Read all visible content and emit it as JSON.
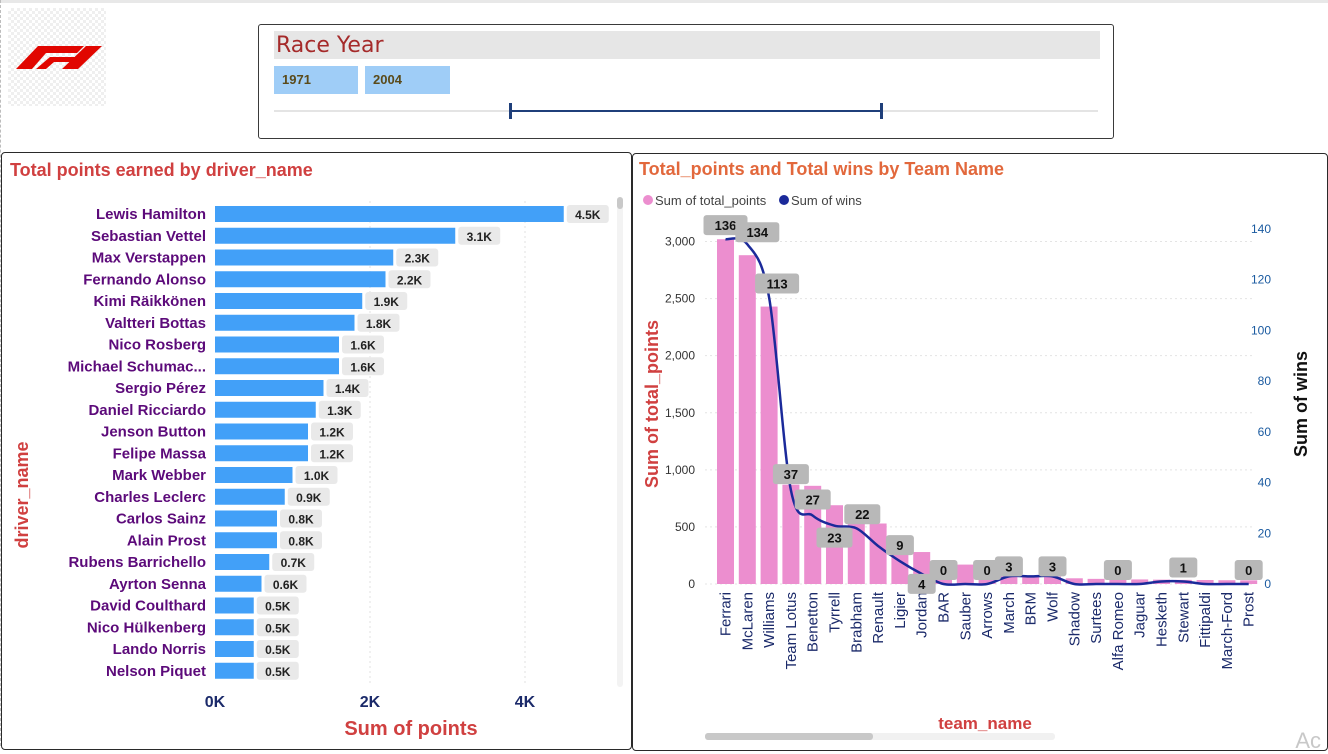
{
  "brand": {
    "logo": "f1-logo"
  },
  "slicer": {
    "title": "Race Year",
    "start": "1971",
    "end": "2004"
  },
  "left_panel": {
    "title": "Total points earned by driver_name"
  },
  "right_panel": {
    "title": "Total_points and Total wins by Team Name"
  },
  "colors": {
    "bar": "#42a0f8",
    "team_bar": "#ec8ecf",
    "wins_line": "#1b2a9a",
    "title_red": "#d04040",
    "driver_purple": "#5c0a7a"
  },
  "chart_data": [
    {
      "type": "bar",
      "orientation": "horizontal",
      "title": "Total points earned by driver_name",
      "xlabel": "Sum of points",
      "ylabel": "driver_name",
      "categories": [
        "Lewis Hamilton",
        "Sebastian Vettel",
        "Max Verstappen",
        "Fernando Alonso",
        "Kimi Räikkönen",
        "Valtteri Bottas",
        "Nico Rosberg",
        "Michael Schumac...",
        "Sergio Pérez",
        "Daniel Ricciardo",
        "Jenson Button",
        "Felipe Massa",
        "Mark Webber",
        "Charles Leclerc",
        "Carlos Sainz",
        "Alain Prost",
        "Rubens Barrichello",
        "Ayrton Senna",
        "David Coulthard",
        "Nico Hülkenberg",
        "Lando Norris",
        "Nelson Piquet"
      ],
      "values": [
        4500,
        3100,
        2300,
        2200,
        1900,
        1800,
        1600,
        1600,
        1400,
        1300,
        1200,
        1200,
        1000,
        900,
        800,
        800,
        700,
        600,
        500,
        500,
        500,
        500
      ],
      "data_labels": [
        "4.5K",
        "3.1K",
        "2.3K",
        "2.2K",
        "1.9K",
        "1.8K",
        "1.6K",
        "1.6K",
        "1.4K",
        "1.3K",
        "1.2K",
        "1.2K",
        "1.0K",
        "0.9K",
        "0.8K",
        "0.8K",
        "0.7K",
        "0.6K",
        "0.5K",
        "0.5K",
        "0.5K",
        "0.5K"
      ],
      "xlim": [
        0,
        5000
      ],
      "x_ticks": [
        "0K",
        "2K",
        "4K"
      ],
      "grid": true
    },
    {
      "type": "bar",
      "combo": "bar+line",
      "title": "Total_points and Total wins by Team Name",
      "xlabel": "team_name",
      "ylabel": "Sum of total_points",
      "y2label": "Sum of wins",
      "legend": [
        "Sum of total_points",
        "Sum of wins"
      ],
      "legend_position": "top-left",
      "categories": [
        "Ferrari",
        "McLaren",
        "Williams",
        "Team Lotus",
        "Benetton",
        "Tyrrell",
        "Brabham",
        "Renault",
        "Ligier",
        "Jordan",
        "BAR",
        "Sauber",
        "Arrows",
        "March",
        "BRM",
        "Wolf",
        "Shadow",
        "Surtees",
        "Alfa Romeo",
        "Jaguar",
        "Hesketh",
        "Stewart",
        "Fittipaldi",
        "March-Ford",
        "Prost"
      ],
      "series": [
        {
          "name": "Sum of total_points",
          "axis": "left",
          "values": [
            3020,
            2880,
            2430,
            870,
            860,
            690,
            680,
            530,
            350,
            280,
            190,
            170,
            140,
            95,
            70,
            65,
            50,
            45,
            42,
            40,
            38,
            36,
            35,
            33,
            32
          ]
        },
        {
          "name": "Sum of wins",
          "axis": "right",
          "values": [
            136,
            134,
            113,
            37,
            27,
            23,
            22,
            15,
            9,
            4,
            0,
            0,
            0,
            3,
            3,
            3,
            0,
            0,
            0,
            0,
            1,
            1,
            0,
            0,
            0
          ]
        }
      ],
      "win_labels": [
        {
          "team": "Ferrari",
          "text": "136"
        },
        {
          "team": "McLaren",
          "text": "134"
        },
        {
          "team": "Williams",
          "text": "113"
        },
        {
          "team": "Team Lotus",
          "text": "37"
        },
        {
          "team": "Benetton",
          "text": "27"
        },
        {
          "team": "Tyrrell",
          "text": "23"
        },
        {
          "team": "Brabham",
          "text": "22"
        },
        {
          "team": "Ligier",
          "text": "9"
        },
        {
          "team": "Jordan",
          "text": "4"
        },
        {
          "team": "BAR",
          "text": "0"
        },
        {
          "team": "Arrows",
          "text": "0"
        },
        {
          "team": "March",
          "text": "3"
        },
        {
          "team": "Wolf",
          "text": "3"
        },
        {
          "team": "Alfa Romeo",
          "text": "0"
        },
        {
          "team": "Stewart",
          "text": "1"
        },
        {
          "team": "Prost",
          "text": "0"
        }
      ],
      "ylim": [
        0,
        3000
      ],
      "y_ticks": [
        "0",
        "500",
        "1,000",
        "1,500",
        "2,000",
        "2,500",
        "3,000"
      ],
      "y2lim": [
        0,
        140
      ],
      "y2_ticks": [
        "0",
        "20",
        "40",
        "60",
        "80",
        "100",
        "120",
        "140"
      ],
      "grid": true
    }
  ]
}
